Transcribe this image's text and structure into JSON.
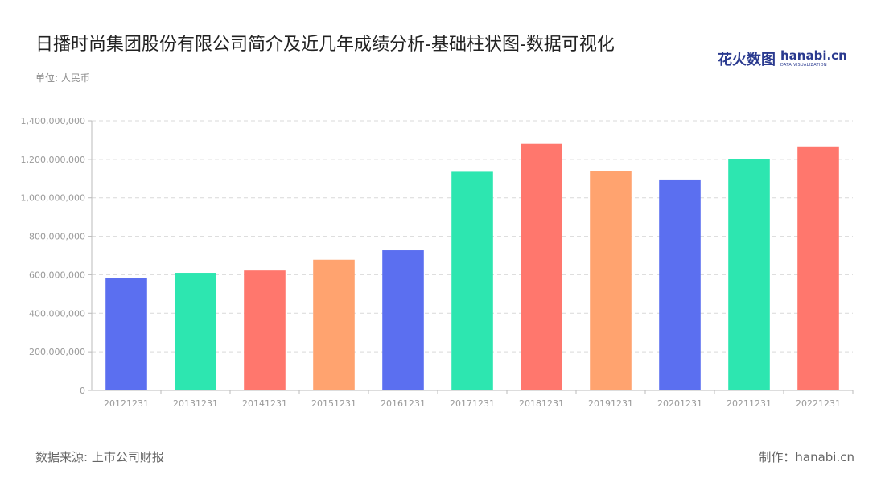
{
  "title": "日播时尚集团股份有限公司简介及近几年成绩分析-基础柱状图-数据可视化",
  "unit_label": "单位: 人民币",
  "logo": {
    "cn": "花火数图",
    "en": "hanabi.cn",
    "en_sub": "DATA VISUALIZATION"
  },
  "footer": {
    "source": "数据来源: 上市公司财报",
    "maker": "制作：hanabi.cn"
  },
  "colors": [
    "#5b6ff0",
    "#2de6b0",
    "#ff776d",
    "#ffa36f"
  ],
  "chart_data": {
    "type": "bar",
    "categories": [
      "20121231",
      "20131231",
      "20141231",
      "20151231",
      "20161231",
      "20171231",
      "20181231",
      "20191231",
      "20201231",
      "20211231",
      "20221231"
    ],
    "values": [
      585000000,
      610000000,
      622000000,
      678000000,
      727000000,
      1135000000,
      1280000000,
      1137000000,
      1091000000,
      1203000000,
      1263000000
    ],
    "y_ticks": [
      "0",
      "200,000,000",
      "400,000,000",
      "600,000,000",
      "800,000,000",
      "1,000,000,000",
      "1,200,000,000",
      "1,400,000,000"
    ],
    "ylim": [
      0,
      1400000000
    ],
    "grid": true,
    "legend": "none"
  }
}
